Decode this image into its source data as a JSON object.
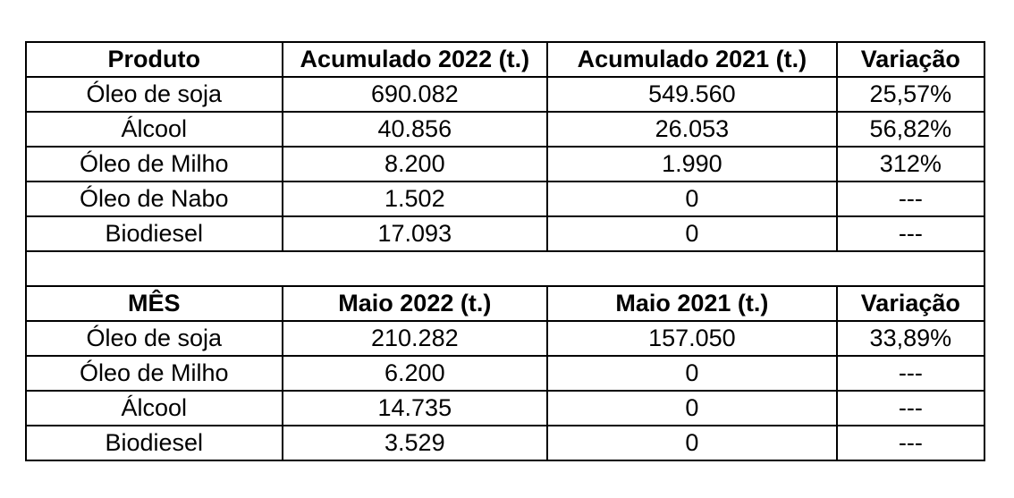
{
  "accumulated": {
    "headers": [
      "Produto",
      "Acumulado 2022 (t.)",
      "Acumulado 2021 (t.)",
      "Variação"
    ],
    "rows": [
      [
        "Óleo de soja",
        "690.082",
        "549.560",
        "25,57%"
      ],
      [
        "Álcool",
        "40.856",
        "26.053",
        "56,82%"
      ],
      [
        "Óleo de Milho",
        "8.200",
        "1.990",
        "312%"
      ],
      [
        "Óleo de Nabo",
        "1.502",
        "0",
        "---"
      ],
      [
        "Biodiesel",
        "17.093",
        "0",
        "---"
      ]
    ]
  },
  "month": {
    "headers": [
      "MÊS",
      "Maio 2022 (t.)",
      "Maio 2021 (t.)",
      "Variação"
    ],
    "rows": [
      [
        "Óleo de soja",
        "210.282",
        "157.050",
        "33,89%"
      ],
      [
        "Óleo de Milho",
        "6.200",
        "0",
        "---"
      ],
      [
        "Álcool",
        "14.735",
        "0",
        "---"
      ],
      [
        "Biodiesel",
        "3.529",
        "0",
        "---"
      ]
    ]
  }
}
